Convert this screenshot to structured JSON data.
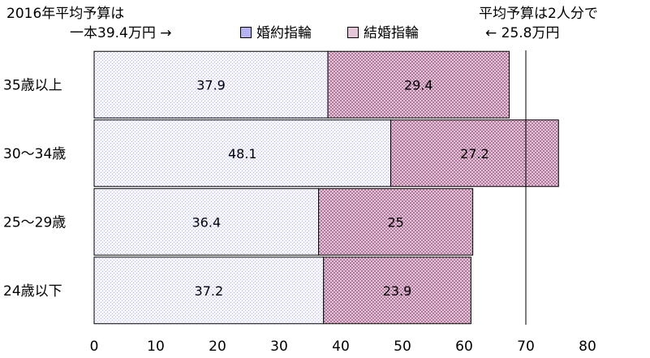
{
  "notes": {
    "left_line1": "2016年平均予算は",
    "left_line2": "一本39.4万円 →",
    "right_line1": "平均予算は2人分で",
    "right_line2": "← 25.8万円"
  },
  "chart_data": {
    "type": "bar",
    "orientation": "horizontal",
    "stacked": true,
    "categories": [
      "35歳以上",
      "30～34歳",
      "25～29歳",
      "24歳以下"
    ],
    "series": [
      {
        "name": "婚約指輪",
        "values": [
          37.9,
          48.1,
          36.4,
          37.2
        ],
        "color": "#f4f4ff",
        "pattern": "fine-dots-blue"
      },
      {
        "name": "結婚指輪",
        "values": [
          29.4,
          27.2,
          25,
          23.9
        ],
        "color": "#ecd9e6",
        "pattern": "crosshatch-maroon"
      }
    ],
    "xlim": [
      0,
      80
    ],
    "xticks": [
      "0",
      "10",
      "20",
      "30",
      "40",
      "50",
      "60",
      "70",
      "80"
    ],
    "reference_line": 70,
    "grid": false,
    "legend": "top-center"
  }
}
